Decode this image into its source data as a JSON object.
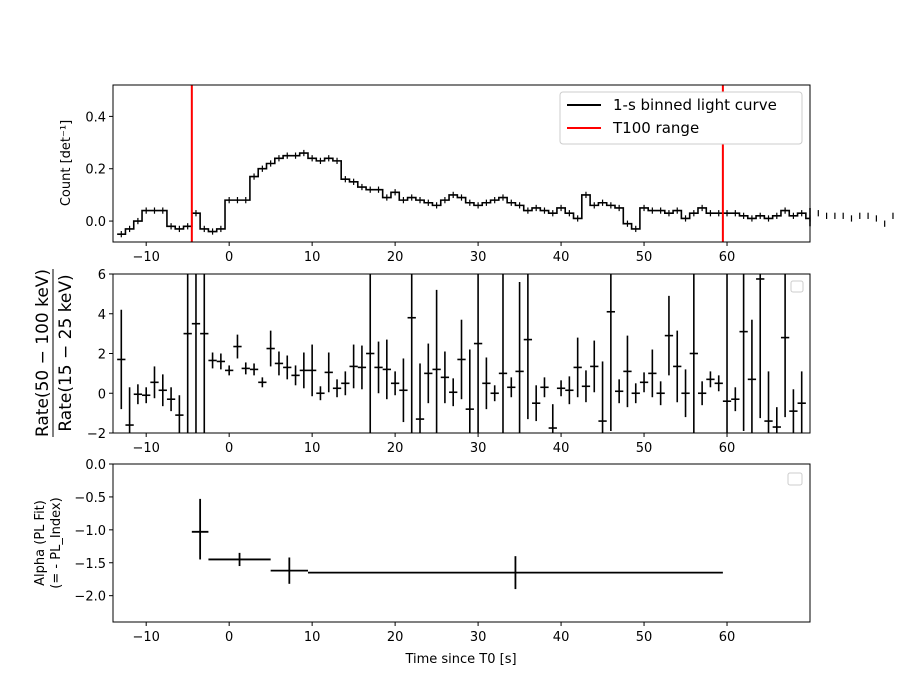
{
  "chart_data": [
    {
      "type": "line",
      "panel": "light-curve",
      "ylabel": "Count [det⁻¹]",
      "xlim": [
        -14,
        70
      ],
      "ylim": [
        -0.08,
        0.52
      ],
      "xticks": [
        -10,
        0,
        10,
        20,
        30,
        40,
        50,
        60
      ],
      "xtick_labels": [
        "−10",
        "0",
        "10",
        "20",
        "30",
        "40",
        "50",
        "60"
      ],
      "yticks": [
        0.0,
        0.2,
        0.4
      ],
      "ytick_labels": [
        "0.0",
        "0.2",
        "0.4"
      ],
      "legend": {
        "placement": "top-right",
        "entries": [
          "1-s binned light curve",
          "T100 range"
        ]
      },
      "series": [
        {
          "name": "1-s binned light curve",
          "color": "#000000",
          "bin_start": -13,
          "bin_width": 1,
          "values": [
            -0.05,
            -0.03,
            0.0,
            0.04,
            0.04,
            0.04,
            -0.02,
            -0.03,
            -0.02,
            0.03,
            -0.03,
            -0.04,
            -0.03,
            0.08,
            0.08,
            0.08,
            0.17,
            0.2,
            0.22,
            0.24,
            0.25,
            0.25,
            0.26,
            0.24,
            0.23,
            0.24,
            0.23,
            0.16,
            0.15,
            0.13,
            0.12,
            0.12,
            0.09,
            0.11,
            0.08,
            0.09,
            0.08,
            0.07,
            0.06,
            0.08,
            0.1,
            0.09,
            0.07,
            0.06,
            0.07,
            0.08,
            0.09,
            0.07,
            0.06,
            0.04,
            0.05,
            0.04,
            0.03,
            0.05,
            0.03,
            0.01,
            0.1,
            0.06,
            0.07,
            0.06,
            0.05,
            -0.01,
            -0.03,
            0.05,
            0.04,
            0.04,
            0.03,
            0.04,
            0.01,
            0.03,
            0.05,
            0.03,
            0.03,
            0.03,
            0.03,
            0.02,
            0.01,
            0.02,
            0.01,
            0.02,
            0.04,
            0.02,
            0.03,
            0.01,
            0.03,
            0.02,
            0.02,
            0.02,
            0.01,
            0.02,
            0.02,
            0.01,
            -0.01,
            0.02,
            0.03,
            0.02,
            0.01,
            0.01,
            0.02,
            0.01,
            0.02,
            0.02,
            0.02,
            0.01,
            0.03,
            0.01,
            0.01,
            0.02,
            0.03,
            0.05,
            0.03,
            0.0,
            0.01,
            0.01,
            0.01,
            -0.01,
            0.02,
            0.03,
            0.01,
            0.01,
            0.02,
            0.02,
            0.01,
            0.0,
            -0.02,
            0.01
          ]
        }
      ],
      "t100_range": {
        "name": "T100 range",
        "color": "#ff0000",
        "x": [
          -4.5,
          59.5
        ]
      }
    },
    {
      "type": "scatter",
      "panel": "hardness-ratio",
      "ylabel_numerator": "Rate(50 − 100 keV)",
      "ylabel_denominator": "Rate(15 − 25 keV)",
      "xlim": [
        -14,
        70
      ],
      "ylim": [
        -2,
        6
      ],
      "xticks": [
        -10,
        0,
        10,
        20,
        30,
        40,
        50,
        60
      ],
      "xtick_labels": [
        "−10",
        "0",
        "10",
        "20",
        "30",
        "40",
        "50",
        "60"
      ],
      "yticks": [
        -2,
        0,
        2,
        4,
        6
      ],
      "ytick_labels": [
        "−2",
        "0",
        "2",
        "4",
        "6"
      ],
      "legend": {
        "placement": "top-right",
        "entries": []
      },
      "points": [
        {
          "x": -13,
          "y": 1.7,
          "err": 2.5
        },
        {
          "x": -12,
          "y": -1.6,
          "err": 1.9
        },
        {
          "x": -11,
          "y": -0.05,
          "err": 0.5
        },
        {
          "x": -10,
          "y": -0.1,
          "err": 0.4
        },
        {
          "x": -9,
          "y": 0.55,
          "err": 0.8
        },
        {
          "x": -8,
          "y": 0.15,
          "err": 0.8
        },
        {
          "x": -7,
          "y": -0.3,
          "err": 0.6
        },
        {
          "x": -6,
          "y": -1.1,
          "err": 1.0
        },
        {
          "x": -5,
          "y": 3.0,
          "err": 8.0
        },
        {
          "x": -4,
          "y": 3.5,
          "err": 8.0
        },
        {
          "x": -3,
          "y": 3.0,
          "err": 8.0
        },
        {
          "x": -2,
          "y": 1.65,
          "err": 0.4
        },
        {
          "x": -1,
          "y": 1.6,
          "err": 0.4
        },
        {
          "x": 0,
          "y": 1.15,
          "err": 0.25
        },
        {
          "x": 1,
          "y": 2.35,
          "err": 0.6
        },
        {
          "x": 2,
          "y": 1.25,
          "err": 0.3
        },
        {
          "x": 3,
          "y": 1.2,
          "err": 0.3
        },
        {
          "x": 4,
          "y": 0.55,
          "err": 0.25
        },
        {
          "x": 5,
          "y": 2.25,
          "err": 0.9
        },
        {
          "x": 6,
          "y": 1.5,
          "err": 0.6
        },
        {
          "x": 7,
          "y": 1.3,
          "err": 0.6
        },
        {
          "x": 8,
          "y": 0.9,
          "err": 0.5
        },
        {
          "x": 9,
          "y": 1.15,
          "err": 0.9
        },
        {
          "x": 10,
          "y": 1.15,
          "err": 1.3
        },
        {
          "x": 11,
          "y": 0.0,
          "err": 0.35
        },
        {
          "x": 12,
          "y": 1.05,
          "err": 1.0
        },
        {
          "x": 13,
          "y": 0.25,
          "err": 0.45
        },
        {
          "x": 14,
          "y": 0.5,
          "err": 0.6
        },
        {
          "x": 15,
          "y": 1.35,
          "err": 1.1
        },
        {
          "x": 16,
          "y": 1.3,
          "err": 1.1
        },
        {
          "x": 17,
          "y": 2.0,
          "err": 5.5
        },
        {
          "x": 18,
          "y": 1.3,
          "err": 1.3
        },
        {
          "x": 19,
          "y": 1.2,
          "err": 1.5
        },
        {
          "x": 20,
          "y": 0.5,
          "err": 0.6
        },
        {
          "x": 21,
          "y": 0.15,
          "err": 1.6
        },
        {
          "x": 22,
          "y": 3.8,
          "err": 6.0
        },
        {
          "x": 23,
          "y": -1.3,
          "err": 2.8
        },
        {
          "x": 24,
          "y": 1.0,
          "err": 1.5
        },
        {
          "x": 25,
          "y": 1.2,
          "err": 4.0
        },
        {
          "x": 26,
          "y": 0.8,
          "err": 1.3
        },
        {
          "x": 27,
          "y": 0.05,
          "err": 0.7
        },
        {
          "x": 28,
          "y": 1.7,
          "err": 2.0
        },
        {
          "x": 29,
          "y": -0.8,
          "err": 3.0
        },
        {
          "x": 30,
          "y": 2.5,
          "err": 5.5
        },
        {
          "x": 31,
          "y": 0.5,
          "err": 1.3
        },
        {
          "x": 32,
          "y": 0.0,
          "err": 0.4
        },
        {
          "x": 33,
          "y": 1.0,
          "err": 6.0
        },
        {
          "x": 34,
          "y": 0.3,
          "err": 0.5
        },
        {
          "x": 35,
          "y": 1.1,
          "err": 4.5
        },
        {
          "x": 36,
          "y": 2.7,
          "err": 4.0
        },
        {
          "x": 37,
          "y": -0.5,
          "err": 0.9
        },
        {
          "x": 38,
          "y": 0.3,
          "err": 0.5
        },
        {
          "x": 39,
          "y": -1.75,
          "err": 1.2
        },
        {
          "x": 40,
          "y": 0.25,
          "err": 0.4
        },
        {
          "x": 41,
          "y": 0.15,
          "err": 0.7
        },
        {
          "x": 42,
          "y": 1.3,
          "err": 1.5
        },
        {
          "x": 43,
          "y": 0.35,
          "err": 0.8
        },
        {
          "x": 44,
          "y": 1.35,
          "err": 1.3
        },
        {
          "x": 45,
          "y": -1.4,
          "err": 3.0
        },
        {
          "x": 46,
          "y": 4.1,
          "err": 6.0
        },
        {
          "x": 47,
          "y": 0.1,
          "err": 0.6
        },
        {
          "x": 48,
          "y": 1.1,
          "err": 1.8
        },
        {
          "x": 49,
          "y": 0.0,
          "err": 0.5
        },
        {
          "x": 50,
          "y": 0.55,
          "err": 0.5
        },
        {
          "x": 51,
          "y": 1.0,
          "err": 1.2
        },
        {
          "x": 52,
          "y": 0.0,
          "err": 0.6
        },
        {
          "x": 53,
          "y": 2.9,
          "err": 2.0
        },
        {
          "x": 54,
          "y": 1.35,
          "err": 1.8
        },
        {
          "x": 55,
          "y": 0.0,
          "err": 1.2
        },
        {
          "x": 56,
          "y": 2.0,
          "err": 6.0
        },
        {
          "x": 57,
          "y": 0.0,
          "err": 0.6
        },
        {
          "x": 58,
          "y": 0.7,
          "err": 0.4
        },
        {
          "x": 59,
          "y": 0.5,
          "err": 0.4
        },
        {
          "x": 60,
          "y": -0.4,
          "err": 7.0
        },
        {
          "x": 61,
          "y": -0.3,
          "err": 0.6
        },
        {
          "x": 62,
          "y": 3.1,
          "err": 5.0
        },
        {
          "x": 63,
          "y": 0.7,
          "err": 3.0
        },
        {
          "x": 64,
          "y": 5.75,
          "err": 7.0
        },
        {
          "x": 65,
          "y": -1.4,
          "err": 2.5
        },
        {
          "x": 66,
          "y": -1.7,
          "err": 1.0
        },
        {
          "x": 67,
          "y": 2.8,
          "err": 4.0
        },
        {
          "x": 68,
          "y": -0.9,
          "err": 1.1
        },
        {
          "x": 69,
          "y": -0.5,
          "err": 1.6
        }
      ]
    },
    {
      "type": "scatter",
      "panel": "photon-index",
      "ylabel_line1": "Alpha (PL Fit)",
      "ylabel_line2": "(= - PL_Index)",
      "xlabel": "Time since T0 [s]",
      "xlim": [
        -14,
        70
      ],
      "ylim": [
        -2.4,
        0.0
      ],
      "xticks": [
        -10,
        0,
        10,
        20,
        30,
        40,
        50,
        60
      ],
      "xtick_labels": [
        "−10",
        "0",
        "10",
        "20",
        "30",
        "40",
        "50",
        "60"
      ],
      "yticks": [
        -2.0,
        -1.5,
        -1.0,
        -0.5,
        0.0
      ],
      "ytick_labels": [
        "−2.0",
        "−1.5",
        "−1.0",
        "−0.5",
        "0.0"
      ],
      "legend": {
        "placement": "top-right",
        "entries": []
      },
      "points": [
        {
          "x": -3.5,
          "x_lo": -4.5,
          "x_hi": -2.5,
          "y": -1.03,
          "y_lo": -1.45,
          "y_hi": -0.53
        },
        {
          "x": 1.25,
          "x_lo": -2.5,
          "x_hi": 5.0,
          "y": -1.45,
          "y_lo": -1.55,
          "y_hi": -1.35
        },
        {
          "x": 7.25,
          "x_lo": 5.0,
          "x_hi": 9.5,
          "y": -1.62,
          "y_lo": -1.82,
          "y_hi": -1.42
        },
        {
          "x": 34.5,
          "x_lo": 9.5,
          "x_hi": 59.5,
          "y": -1.65,
          "y_lo": -1.9,
          "y_hi": -1.4
        }
      ]
    }
  ]
}
